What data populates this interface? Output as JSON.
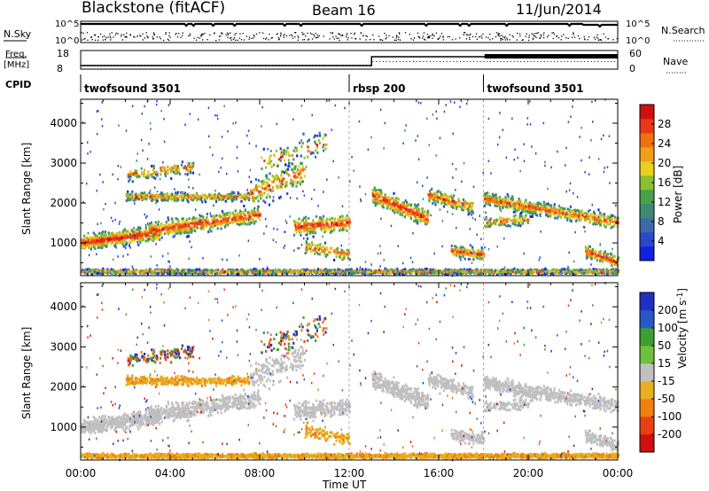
{
  "header": {
    "title": "Blackstone (fitACF)",
    "beam": "Beam 16",
    "date": "11/Jun/2014"
  },
  "side_labels": {
    "nsky": "N.Sky",
    "freq": "Freq.",
    "mhz": "[MHz]",
    "cpid": "CPID",
    "nsearch": "N.Search",
    "nave": "Nave"
  },
  "top_ticks": {
    "nsky_left": [
      "10^5",
      "10^0"
    ],
    "nsearch_right": [
      "10^5",
      "10^0"
    ],
    "freq_left": [
      "18",
      "8"
    ],
    "nave_right": [
      "60",
      "0"
    ]
  },
  "cpid_segments": [
    {
      "label": "twofsound 3501",
      "start": 0
    },
    {
      "label": "rbsp 200",
      "start": 12
    },
    {
      "label": "twofsound 3501",
      "start": 18
    }
  ],
  "chart_data": [
    {
      "type": "heatmap",
      "name": "power",
      "ylabel": "Slant Range [km]",
      "xlabel": "Time UT",
      "x_ticks": [
        "00:00",
        "04:00",
        "08:00",
        "12:00",
        "16:00",
        "20:00",
        "00:00"
      ],
      "x_range_hours": [
        0,
        24
      ],
      "y_ticks": [
        1000,
        2000,
        3000,
        4000
      ],
      "ylim": [
        180,
        4600
      ],
      "colorbar": {
        "label": "Power [dB]",
        "ticks": [
          4,
          8,
          12,
          16,
          20,
          24,
          28
        ],
        "range": [
          0,
          32
        ],
        "colors": [
          "#1020e0",
          "#2a48c8",
          "#3a6aa8",
          "#3e8a70",
          "#4aa048",
          "#8cc030",
          "#e8d020",
          "#f0a018",
          "#f07010",
          "#e83818",
          "#d01010"
        ]
      }
    },
    {
      "type": "heatmap",
      "name": "velocity",
      "ylabel": "Slant Range [km]",
      "xlabel": "Time UT",
      "x_ticks": [
        "00:00",
        "04:00",
        "08:00",
        "12:00",
        "16:00",
        "20:00",
        "00:00"
      ],
      "x_range_hours": [
        0,
        24
      ],
      "y_ticks": [
        1000,
        2000,
        3000,
        4000
      ],
      "ylim": [
        180,
        4600
      ],
      "colorbar": {
        "label": "Velocity [m s^-1]",
        "ticks": [
          "200",
          "100",
          "50",
          "15",
          "-15",
          "-50",
          "-100",
          "-200"
        ],
        "colors": [
          "#2030c0",
          "#2858c8",
          "#3aa030",
          "#70c040",
          "#c0c0c0",
          "#e8b020",
          "#f08010",
          "#e84010",
          "#d01010"
        ]
      }
    }
  ],
  "x_axis_label": "Time UT"
}
